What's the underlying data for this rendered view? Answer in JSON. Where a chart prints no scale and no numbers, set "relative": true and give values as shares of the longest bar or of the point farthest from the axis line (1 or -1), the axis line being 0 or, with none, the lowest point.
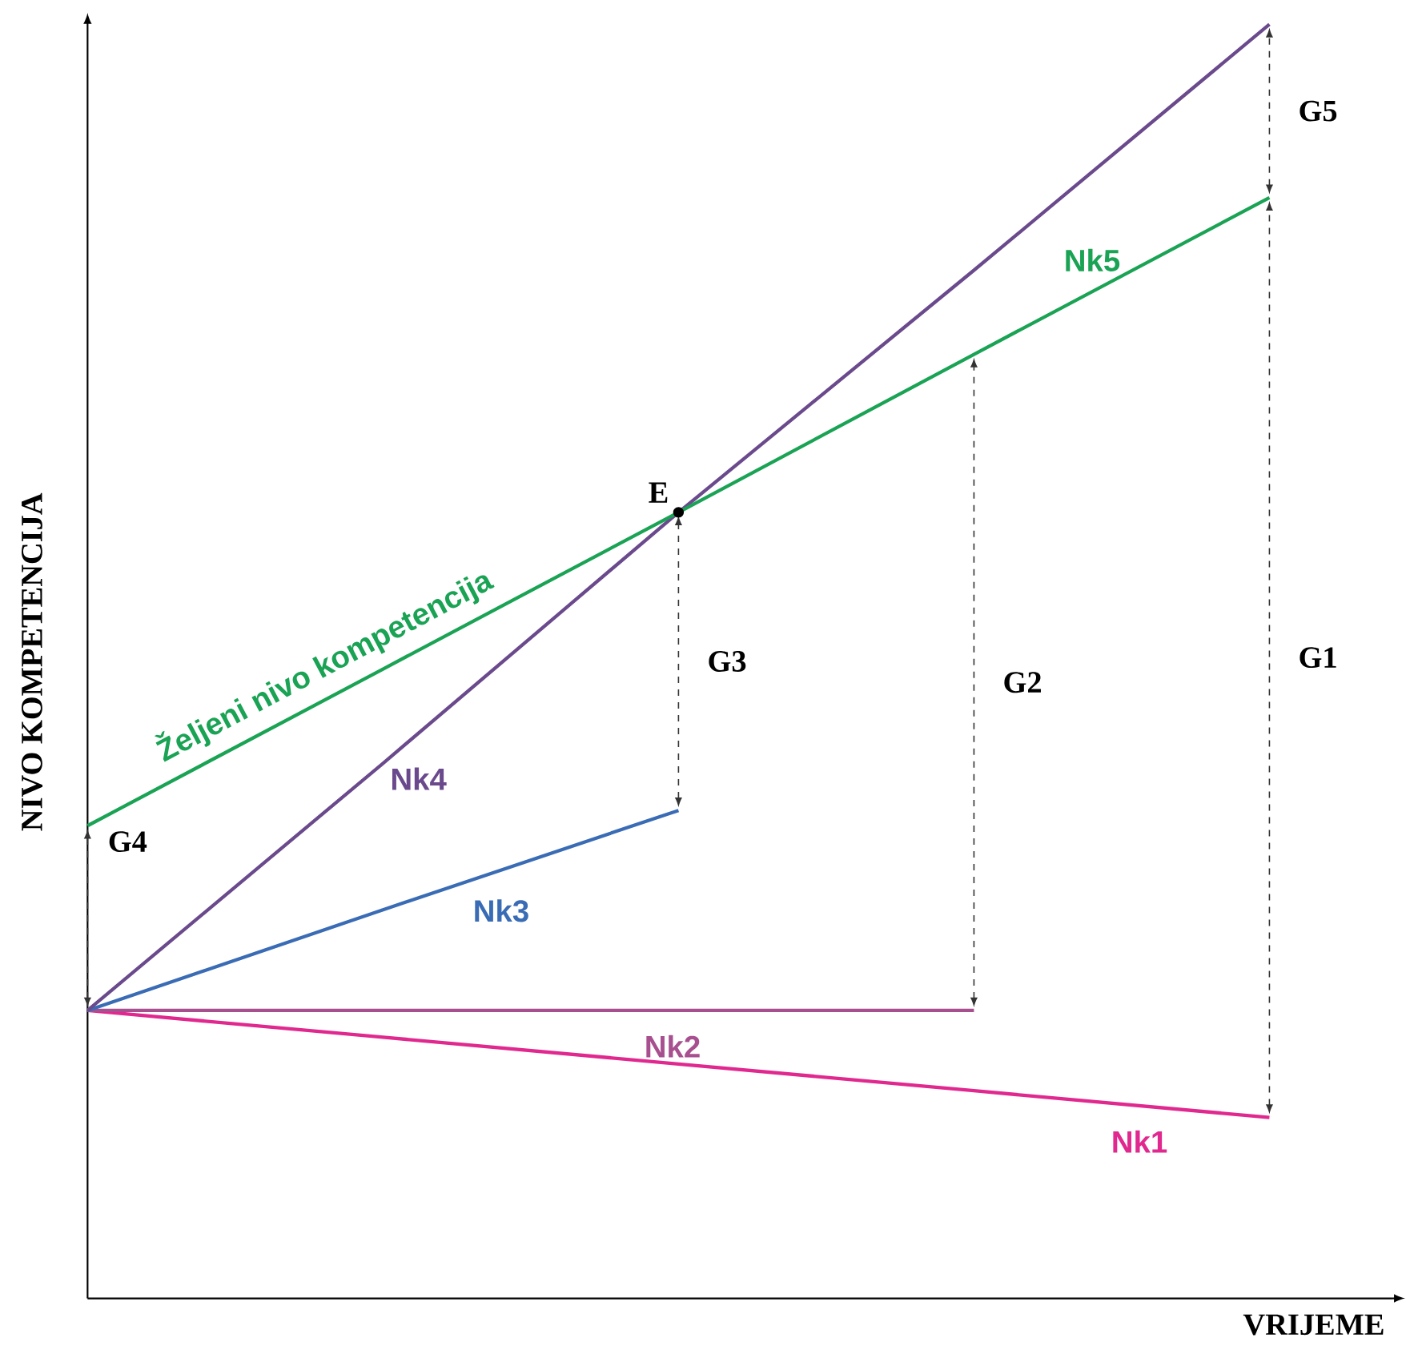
{
  "chart_data": {
    "type": "line",
    "relative": true,
    "xlabel": "VRIJEME",
    "ylabel": "NIVO KOMPETENCIJA",
    "legend": false,
    "marker": "none",
    "line_style": "solid",
    "categories": [
      null,
      null,
      null,
      null,
      null
    ],
    "series": [
      {
        "name": "Nk1",
        "color": "#e0288f",
        "values": [
          0.226,
          0.205,
          0.184,
          0.163,
          0.142
        ]
      },
      {
        "name": "Nk2",
        "color": "#a8508f",
        "values": [
          0.226,
          0.226,
          0.226,
          0.226,
          null
        ]
      },
      {
        "name": "Nk3",
        "color": "#3a6cb5",
        "values": [
          0.226,
          0.305,
          0.383,
          null,
          null
        ]
      },
      {
        "name": "Nk4",
        "color": "#6a4a8c",
        "values": [
          0.226,
          0.42,
          0.617,
          0.807,
          1
        ]
      },
      {
        "name": "Nk5",
        "color": "#1aa354",
        "values": [
          0.371,
          0.494,
          0.617,
          0.741,
          0.864
        ]
      }
    ],
    "annotations": [
      "Željeni nivo kompetencija",
      "G1",
      "G2",
      "G3",
      "G4",
      "G5",
      "E"
    ]
  }
}
